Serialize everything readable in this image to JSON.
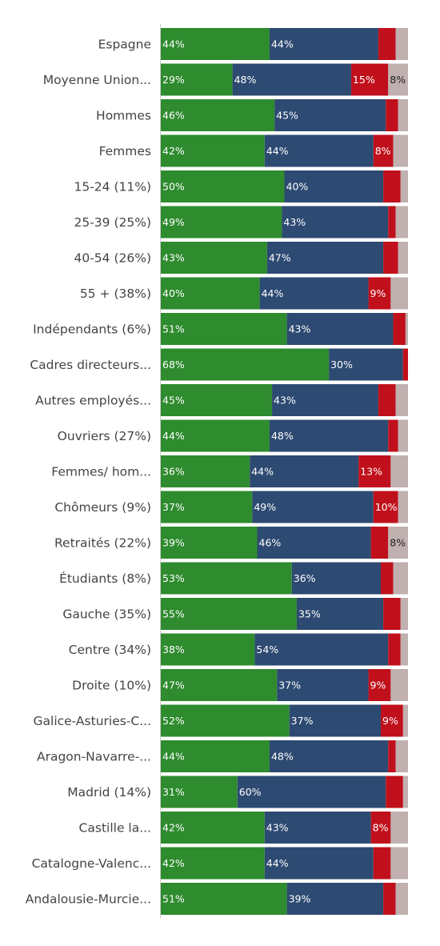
{
  "chart_data": {
    "type": "bar",
    "orientation": "horizontal",
    "stacked": true,
    "categories": [
      "Espagne",
      "Moyenne Union...",
      "Hommes",
      "Femmes",
      "15-24 (11%)",
      "25-39 (25%)",
      "40-54 (26%)",
      "55 + (38%)",
      "Indépendants (6%)",
      "Cadres directeurs...",
      "Autres employés...",
      "Ouvriers (27%)",
      "Femmes/ hom...",
      "Chômeurs (9%)",
      "Retraités (22%)",
      "Étudiants (8%)",
      "Gauche (35%)",
      "Centre (34%)",
      "Droite (10%)",
      "Galice-Asturies-C...",
      "Aragon-Navarre-...",
      "Madrid (14%)",
      "Castille la...",
      "Catalogne-Valenc...",
      "Andalousie-Murcie..."
    ],
    "series": [
      {
        "color": "#2e8b2e",
        "label_color": "#ffffff",
        "values": [
          44,
          29,
          46,
          42,
          50,
          49,
          43,
          40,
          51,
          68,
          45,
          44,
          36,
          37,
          39,
          53,
          55,
          38,
          47,
          52,
          44,
          31,
          42,
          42,
          51
        ],
        "labels": [
          "44%",
          "29%",
          "46%",
          "42%",
          "50%",
          "49%",
          "43%",
          "40%",
          "51%",
          "68%",
          "45%",
          "44%",
          "36%",
          "37%",
          "39%",
          "53%",
          "55%",
          "38%",
          "47%",
          "52%",
          "44%",
          "31%",
          "42%",
          "42%",
          "51%"
        ]
      },
      {
        "color": "#2d4a72",
        "label_color": "#ffffff",
        "values": [
          44,
          48,
          45,
          44,
          40,
          43,
          47,
          44,
          43,
          30,
          43,
          48,
          44,
          49,
          46,
          36,
          35,
          54,
          37,
          37,
          48,
          60,
          43,
          44,
          39
        ],
        "labels": [
          "44%",
          "48%",
          "45%",
          "44%",
          "40%",
          "43%",
          "47%",
          "44%",
          "43%",
          "30%",
          "43%",
          "48%",
          "44%",
          "49%",
          "46%",
          "36%",
          "35%",
          "54%",
          "37%",
          "37%",
          "48%",
          "60%",
          "43%",
          "44%",
          "39%"
        ]
      },
      {
        "color": "#c0101c",
        "label_color": "#ffffff",
        "values": [
          7,
          15,
          5,
          8,
          7,
          3,
          6,
          9,
          5,
          2,
          7,
          4,
          13,
          10,
          7,
          5,
          7,
          5,
          9,
          9,
          3,
          7,
          8,
          7,
          5
        ],
        "labels": [
          "",
          "15%",
          "",
          "8%",
          "",
          "",
          "",
          "9%",
          "",
          "",
          "",
          "",
          "13%",
          "10%",
          "",
          "",
          "",
          "",
          "9%",
          "9%",
          "",
          "",
          "8%",
          "",
          ""
        ]
      },
      {
        "color": "#c0b0b0",
        "label_color": "#222222",
        "values": [
          5,
          8,
          4,
          6,
          3,
          5,
          4,
          7,
          1,
          0,
          5,
          4,
          7,
          4,
          8,
          6,
          3,
          3,
          7,
          2,
          5,
          2,
          7,
          7,
          5
        ],
        "labels": [
          "",
          "8%",
          "",
          "",
          "",
          "",
          "",
          "",
          "",
          "",
          "",
          "",
          "",
          "",
          "8%",
          "",
          "",
          "",
          "",
          "",
          "",
          "",
          "",
          "",
          ""
        ]
      }
    ],
    "xlim": [
      0,
      100
    ],
    "title": "",
    "xlabel": "",
    "ylabel": "",
    "legend": "none",
    "grid": false
  }
}
